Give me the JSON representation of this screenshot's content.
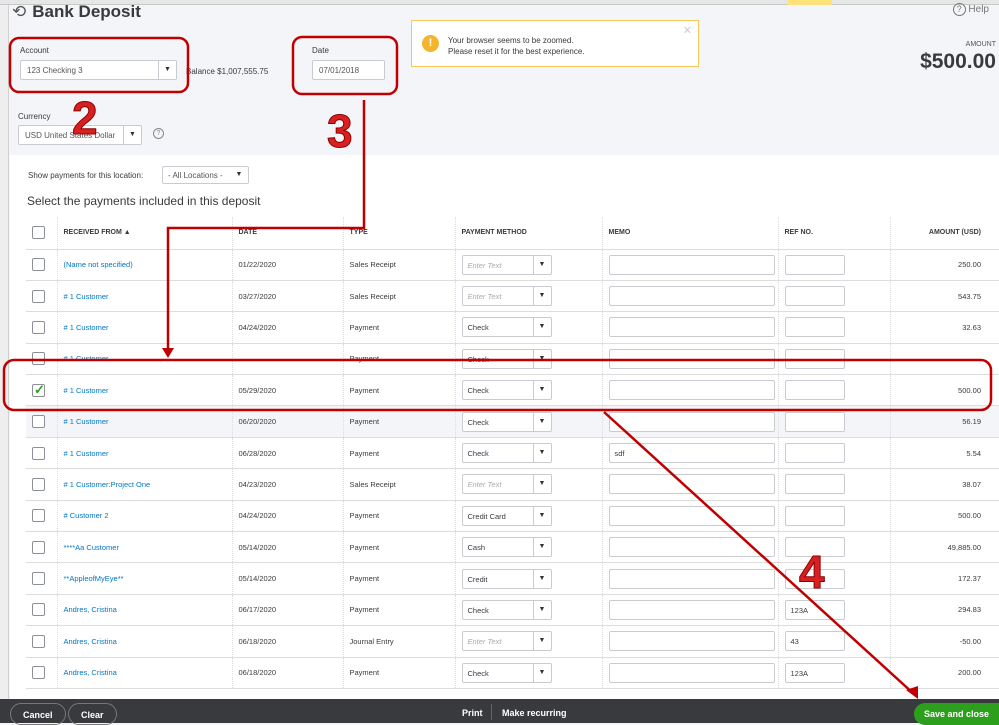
{
  "header": {
    "title": "Bank Deposit",
    "help": "Help",
    "amount_label": "AMOUNT",
    "amount": "$500.00"
  },
  "account": {
    "label": "Account",
    "value": "123 Checking 3",
    "balance": "Balance $1,007,555.75"
  },
  "date": {
    "label": "Date",
    "value": "07/01/2018"
  },
  "currency": {
    "label": "Currency",
    "value": "USD United States Dollar"
  },
  "banner": {
    "line1": "Your browser seems to be zoomed.",
    "line2": "Please reset it for the best experience."
  },
  "location": {
    "label": "Show payments for this location:",
    "value": "- All Locations -"
  },
  "section_title": "Select the payments included in this deposit",
  "columns": [
    "RECEIVED FROM ▲",
    "DATE",
    "TYPE",
    "PAYMENT METHOD",
    "MEMO",
    "REF NO.",
    "AMOUNT (USD)"
  ],
  "rows": [
    {
      "from": "(Name not specified)",
      "date": "01/22/2020",
      "type": "Sales Receipt",
      "method": "Enter Text",
      "placeholder": true,
      "memo": "",
      "ref": "",
      "amount": "250.00",
      "checked": false
    },
    {
      "from": "# 1 Customer",
      "date": "03/27/2020",
      "type": "Sales Receipt",
      "method": "Enter Text",
      "placeholder": true,
      "memo": "",
      "ref": "",
      "amount": "543.75",
      "checked": false
    },
    {
      "from": "# 1 Customer",
      "date": "04/24/2020",
      "type": "Payment",
      "method": "Check",
      "memo": "",
      "ref": "",
      "amount": "32.63",
      "checked": false
    },
    {
      "from": "# 1 Customer",
      "date": "",
      "type": "Payment",
      "method": "Check",
      "memo": "",
      "ref": "",
      "amount": "",
      "checked": false
    },
    {
      "from": "# 1 Customer",
      "date": "05/29/2020",
      "type": "Payment",
      "method": "Check",
      "memo": "",
      "ref": "",
      "amount": "500.00",
      "checked": true
    },
    {
      "from": "# 1 Customer",
      "date": "06/20/2020",
      "type": "Payment",
      "method": "Check",
      "memo": "",
      "ref": "",
      "amount": "56.19",
      "checked": false,
      "alt": true
    },
    {
      "from": "# 1 Customer",
      "date": "06/28/2020",
      "type": "Payment",
      "method": "Check",
      "memo": "sdf",
      "ref": "",
      "amount": "5.54",
      "checked": false
    },
    {
      "from": "# 1 Customer:Project One",
      "date": "04/23/2020",
      "type": "Sales Receipt",
      "method": "Enter Text",
      "placeholder": true,
      "memo": "",
      "ref": "",
      "amount": "38.07",
      "checked": false
    },
    {
      "from": "# Customer 2",
      "date": "04/24/2020",
      "type": "Payment",
      "method": "Credit Card",
      "memo": "",
      "ref": "",
      "amount": "500.00",
      "checked": false
    },
    {
      "from": "****Aa Customer",
      "date": "05/14/2020",
      "type": "Payment",
      "method": "Cash",
      "memo": "",
      "ref": "",
      "amount": "49,885.00",
      "checked": false
    },
    {
      "from": "**AppleofMyEye**",
      "date": "05/14/2020",
      "type": "Payment",
      "method": "Credit",
      "memo": "",
      "ref": "",
      "amount": "172.37",
      "checked": false
    },
    {
      "from": "Andres, Cristina",
      "date": "06/17/2020",
      "type": "Payment",
      "method": "Check",
      "memo": "",
      "ref": "123A",
      "amount": "294.83",
      "checked": false
    },
    {
      "from": "Andres, Cristina",
      "date": "06/18/2020",
      "type": "Journal Entry",
      "method": "Enter Text",
      "placeholder": true,
      "memo": "",
      "ref": "43",
      "amount": "-50.00",
      "checked": false
    },
    {
      "from": "Andres, Cristina",
      "date": "06/18/2020",
      "type": "Payment",
      "method": "Check",
      "memo": "",
      "ref": "123A",
      "amount": "200.00",
      "checked": false
    }
  ],
  "footer": {
    "cancel": "Cancel",
    "clear": "Clear",
    "print": "Print",
    "recurring": "Make recurring",
    "save": "Save and close"
  },
  "annotations": {
    "step2": "2",
    "step3": "3",
    "step4": "4",
    "color": "#c00000"
  }
}
